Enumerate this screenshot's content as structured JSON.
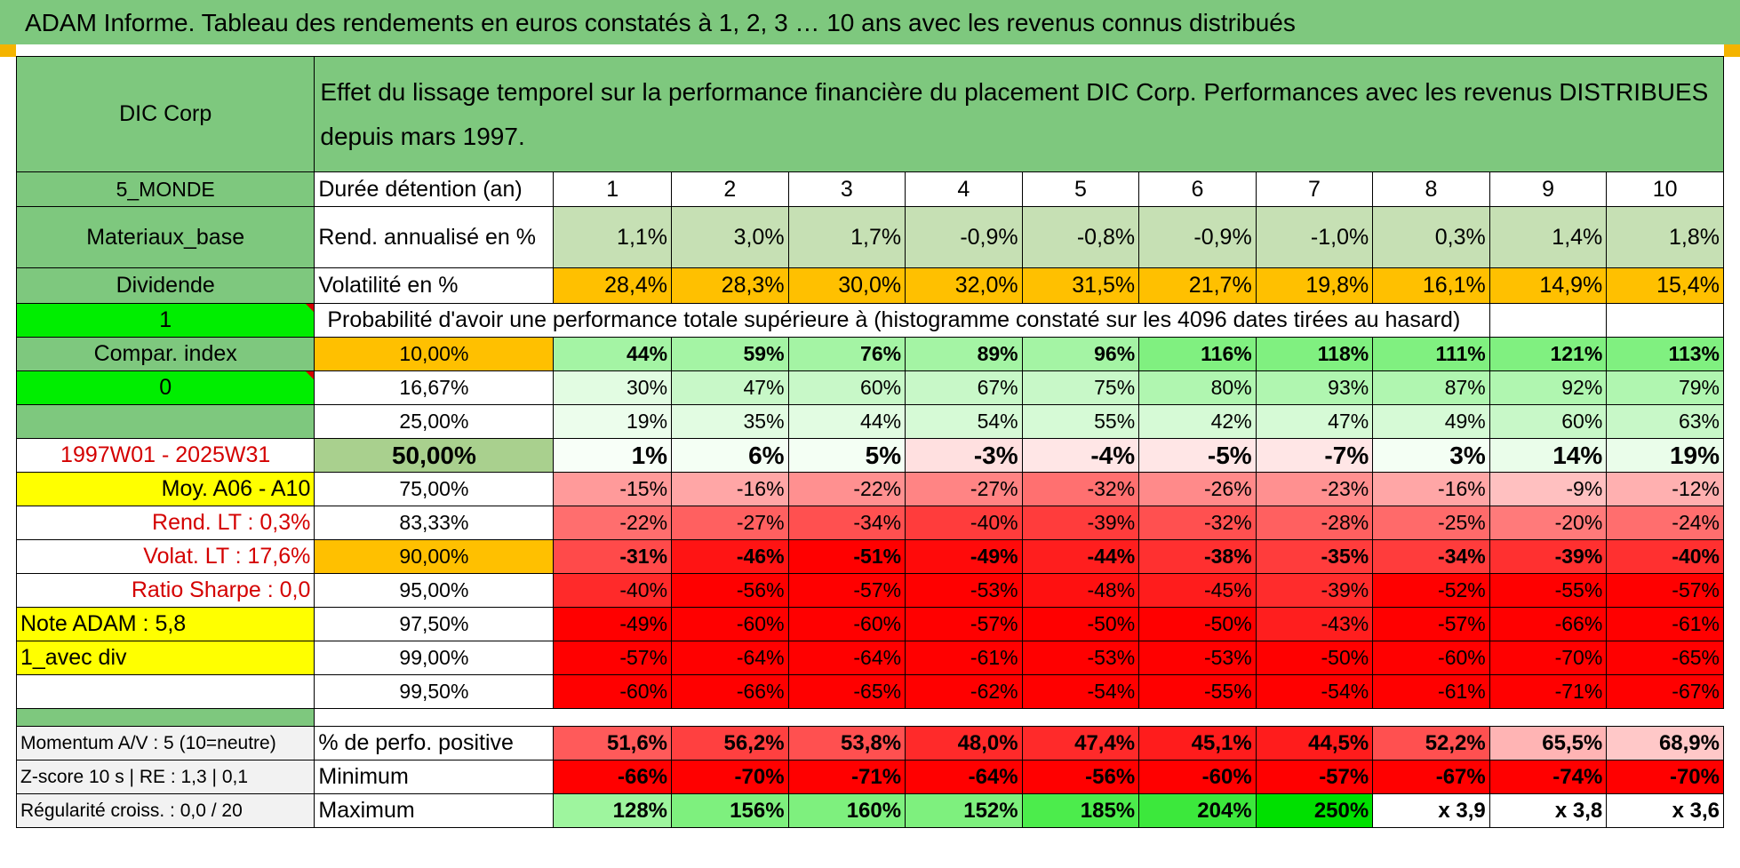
{
  "title": "ADAM Informe. Tableau des rendements en euros constatés à 1, 2, 3 … 10 ans avec les revenus connus distribués",
  "header": {
    "fund_name": "DIC Corp",
    "description": "Effet du lissage temporel sur la performance financière du placement DIC Corp. Performances avec les revenus DISTRIBUES depuis mars 1997."
  },
  "side_info": {
    "zone": "5_MONDE",
    "sector": "Materiaux_base",
    "income_type": "Dividende",
    "flag1": "1",
    "compar_index": "Compar. index",
    "flag2": "0",
    "period": "1997W01 - 2025W31",
    "moy": "Moy. A06 - A10",
    "rend_lt": "Rend. LT :    0,3%",
    "volat_lt": "Volat. LT :    17,6%",
    "sharpe": "Ratio Sharpe :     0,0",
    "note": "Note ADAM : 5,8",
    "div_mode": "1_avec div",
    "momentum": "Momentum A/V : 5 (10=neutre)",
    "zscore": "Z-score 10 s | RE : 1,3 | 0,1",
    "regularite": "Régularité croiss. : 0,0 / 20"
  },
  "table": {
    "duration_label": "Durée détention (an)",
    "years": [
      "1",
      "2",
      "3",
      "4",
      "5",
      "6",
      "7",
      "8",
      "9",
      "10"
    ],
    "rend_label": "Rend. annualisé en %",
    "rend": [
      "1,1%",
      "3,0%",
      "1,7%",
      "-0,9%",
      "-0,8%",
      "-0,9%",
      "-1,0%",
      "0,3%",
      "1,4%",
      "1,8%"
    ],
    "vol_label": "Volatilité en %",
    "vol": [
      "28,4%",
      "28,3%",
      "30,0%",
      "32,0%",
      "31,5%",
      "21,7%",
      "19,8%",
      "16,1%",
      "14,9%",
      "15,4%"
    ],
    "prob_title": "Probabilité d'avoir une performance totale supérieure à (histogramme constaté sur les 4096 dates tirées au hasard)",
    "prob_rows": [
      {
        "p": "10,00%",
        "v": [
          "44%",
          "59%",
          "76%",
          "89%",
          "96%",
          "116%",
          "118%",
          "111%",
          "121%",
          "113%"
        ],
        "bg": [
          "#a4f4a4",
          "#a4f4a4",
          "#a4f4a4",
          "#a4f4a4",
          "#a4f4a4",
          "#80f080",
          "#80f080",
          "#80f080",
          "#80f080",
          "#80f080"
        ]
      },
      {
        "p": "16,67%",
        "v": [
          "30%",
          "47%",
          "60%",
          "67%",
          "75%",
          "80%",
          "93%",
          "87%",
          "92%",
          "79%"
        ],
        "bg": [
          "#e2fce2",
          "#c8f8c8",
          "#c8f8c8",
          "#c8f8c8",
          "#c8f8c8",
          "#b0f6b0",
          "#b0f6b0",
          "#b0f6b0",
          "#b0f6b0",
          "#b0f6b0"
        ]
      },
      {
        "p": "25,00%",
        "v": [
          "19%",
          "35%",
          "44%",
          "54%",
          "55%",
          "42%",
          "47%",
          "49%",
          "60%",
          "63%"
        ],
        "bg": [
          "#ecfdec",
          "#e2fce2",
          "#e2fce2",
          "#d6fad6",
          "#d6fad6",
          "#d6fad6",
          "#d6fad6",
          "#d6fad6",
          "#c8f8c8",
          "#c8f8c8"
        ]
      },
      {
        "p": "50,00%",
        "v": [
          "1%",
          "6%",
          "5%",
          "-3%",
          "-4%",
          "-5%",
          "-7%",
          "3%",
          "14%",
          "19%"
        ],
        "bg": [
          "#f8fff8",
          "#f4fff4",
          "#f4fff4",
          "#ffe0e0",
          "#ffe6e6",
          "#ffe6e6",
          "#ffe6e6",
          "#f4fff4",
          "#eafdea",
          "#eafdea"
        ]
      },
      {
        "p": "75,00%",
        "v": [
          "-15%",
          "-16%",
          "-22%",
          "-27%",
          "-32%",
          "-26%",
          "-23%",
          "-16%",
          "-9%",
          "-12%"
        ],
        "bg": [
          "#ff9a9a",
          "#ffa6a6",
          "#ff9090",
          "#ff8484",
          "#ff7070",
          "#ff8a8a",
          "#ff9090",
          "#ffa6a6",
          "#ffc0c0",
          "#ffb0b0"
        ]
      },
      {
        "p": "83,33%",
        "v": [
          "-22%",
          "-27%",
          "-34%",
          "-40%",
          "-39%",
          "-32%",
          "-28%",
          "-25%",
          "-20%",
          "-24%"
        ],
        "bg": [
          "#ff6e6e",
          "#ff6060",
          "#ff5050",
          "#ff3c3c",
          "#ff3c3c",
          "#ff5050",
          "#ff6060",
          "#ff6a6a",
          "#ff7a7a",
          "#ff6e6e"
        ]
      },
      {
        "p": "90,00%",
        "v": [
          "-31%",
          "-46%",
          "-51%",
          "-49%",
          "-44%",
          "-38%",
          "-35%",
          "-34%",
          "-39%",
          "-40%"
        ],
        "bg": [
          "#ff4a4a",
          "#ff1414",
          "#ff0000",
          "#ff0a0a",
          "#ff1e1e",
          "#ff3030",
          "#ff3c3c",
          "#ff3c3c",
          "#ff3030",
          "#ff3030"
        ]
      },
      {
        "p": "95,00%",
        "v": [
          "-40%",
          "-56%",
          "-57%",
          "-53%",
          "-48%",
          "-45%",
          "-39%",
          "-52%",
          "-55%",
          "-57%"
        ],
        "bg": [
          "#ff2a2a",
          "#ff0000",
          "#ff0000",
          "#ff0000",
          "#ff1010",
          "#ff1c1c",
          "#ff2c2c",
          "#ff0000",
          "#ff0000",
          "#ff0000"
        ]
      },
      {
        "p": "97,50%",
        "v": [
          "-49%",
          "-60%",
          "-60%",
          "-57%",
          "-50%",
          "-50%",
          "-43%",
          "-57%",
          "-66%",
          "-61%"
        ],
        "bg": [
          "#ff0000",
          "#ff0000",
          "#ff0000",
          "#ff0000",
          "#ff0000",
          "#ff0000",
          "#ff1e1e",
          "#ff0000",
          "#ff0000",
          "#ff0000"
        ]
      },
      {
        "p": "99,00%",
        "v": [
          "-57%",
          "-64%",
          "-64%",
          "-61%",
          "-53%",
          "-53%",
          "-50%",
          "-60%",
          "-70%",
          "-65%"
        ],
        "bg": [
          "#ff0000",
          "#ff0000",
          "#ff0000",
          "#ff0000",
          "#ff0000",
          "#ff0000",
          "#ff0000",
          "#ff0000",
          "#ff0000",
          "#ff0000"
        ]
      },
      {
        "p": "99,50%",
        "v": [
          "-60%",
          "-66%",
          "-65%",
          "-62%",
          "-54%",
          "-55%",
          "-54%",
          "-61%",
          "-71%",
          "-67%"
        ],
        "bg": [
          "#ff0000",
          "#ff0000",
          "#ff0000",
          "#ff0000",
          "#ff0000",
          "#ff0000",
          "#ff0000",
          "#ff0000",
          "#ff0000",
          "#ff0000"
        ]
      }
    ],
    "pos_label": "% de perfo. positive",
    "pos": [
      "51,6%",
      "56,2%",
      "53,8%",
      "48,0%",
      "47,4%",
      "45,1%",
      "44,5%",
      "52,2%",
      "65,5%",
      "68,9%"
    ],
    "pos_bg": [
      "#ff5a5a",
      "#ff4040",
      "#ff5050",
      "#ff2a2a",
      "#ff2a2a",
      "#ff1c1c",
      "#ff1c1c",
      "#ff5050",
      "#ffb4b4",
      "#ffc8c8"
    ],
    "min_label": "Minimum",
    "min": [
      "-66%",
      "-70%",
      "-71%",
      "-64%",
      "-56%",
      "-60%",
      "-57%",
      "-67%",
      "-74%",
      "-70%"
    ],
    "max_label": "Maximum",
    "max": [
      "128%",
      "156%",
      "160%",
      "152%",
      "185%",
      "204%",
      "250%",
      "x 3,9",
      "x 3,8",
      "x 3,6"
    ],
    "max_bg": [
      "#9ef59e",
      "#7ef07e",
      "#7ef07e",
      "#7ef07e",
      "#4cec4c",
      "#3ce83c",
      "#00e000",
      "#ffffff",
      "#ffffff",
      "#ffffff"
    ]
  }
}
